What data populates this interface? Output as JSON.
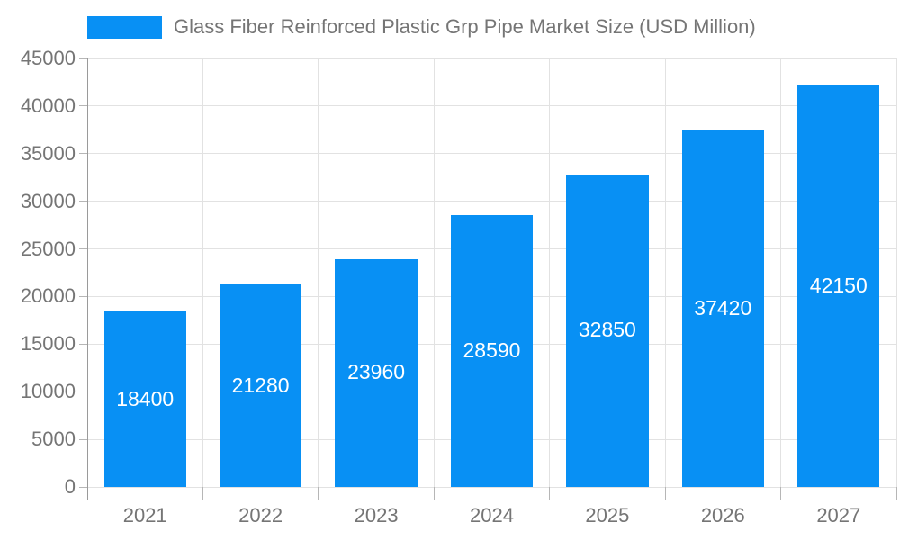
{
  "chart_data": {
    "type": "bar",
    "title": "Glass Fiber Reinforced Plastic Grp Pipe Market Size (USD Million)",
    "categories": [
      "2021",
      "2022",
      "2023",
      "2024",
      "2025",
      "2026",
      "2027"
    ],
    "values": [
      18400,
      21280,
      23960,
      28590,
      32850,
      37420,
      42150
    ],
    "xlabel": "",
    "ylabel": "",
    "ylim": [
      0,
      45000
    ],
    "ytick_step": 5000,
    "yticks": [
      0,
      5000,
      10000,
      15000,
      20000,
      25000,
      30000,
      35000,
      40000,
      45000
    ],
    "grid": true,
    "legend_position": "top",
    "bar_labels_inside": true,
    "colors": {
      "bar": "#0890F4",
      "bar_label": "#FFFFFF",
      "axis_text": "#757575",
      "legend_text": "#757575",
      "gridline": "#E2E2E2",
      "tick": "#B6B6B6",
      "axis_line": "#9A9A9A",
      "background": "#FFFFFF"
    }
  }
}
